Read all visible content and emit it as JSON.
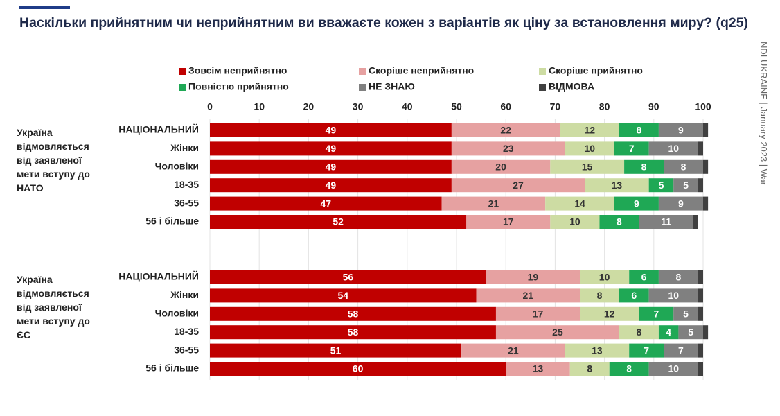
{
  "chart_data": {
    "type": "stacked-bar-horizontal",
    "title": "Наскільки прийнятним чи неприйнятним ви вважаєте кожен з варіантів як ціну за встановлення миру? (q25)",
    "source": "NDI UKRAINE | January 2023 | War",
    "xlim": [
      0,
      100
    ],
    "xticks": [
      0,
      10,
      20,
      30,
      40,
      50,
      60,
      70,
      80,
      90,
      100
    ],
    "grid": true,
    "groups": [
      {
        "label": "Україна відмовляється від заявленої мети вступу до НАТО",
        "categories": [
          "НАЦІОНАЛЬНИЙ",
          "Жінки",
          "Чоловіки",
          "18-35",
          "36-55",
          "56 і більше"
        ]
      },
      {
        "label": "Україна відмовляється від заявленої мети вступу до ЄС",
        "categories": [
          "НАЦІОНАЛЬНИЙ",
          "Жінки",
          "Чоловіки",
          "18-35",
          "36-55",
          "56 і більше"
        ]
      }
    ],
    "series": [
      {
        "name": "Зовсім неприйнятно",
        "color": "#c00000",
        "label_color": "#ffffff",
        "values": [
          49,
          49,
          49,
          49,
          47,
          52,
          56,
          54,
          58,
          58,
          51,
          60
        ]
      },
      {
        "name": "Скоріше неприйнятно",
        "color": "#e6a1a1",
        "label_color": "#333333",
        "values": [
          22,
          23,
          20,
          27,
          21,
          17,
          19,
          21,
          17,
          25,
          21,
          13
        ]
      },
      {
        "name": "Скоріше прийнятно",
        "color": "#cddca3",
        "label_color": "#333333",
        "values": [
          12,
          10,
          15,
          13,
          14,
          10,
          10,
          8,
          12,
          8,
          13,
          8
        ]
      },
      {
        "name": "Повністю прийнятно",
        "color": "#1fa855",
        "label_color": "#ffffff",
        "values": [
          8,
          7,
          8,
          5,
          9,
          8,
          6,
          6,
          7,
          4,
          7,
          8
        ]
      },
      {
        "name": "НЕ ЗНАЮ",
        "color": "#808080",
        "label_color": "#ffffff",
        "values": [
          9,
          10,
          8,
          5,
          9,
          11,
          8,
          10,
          5,
          5,
          7,
          10
        ]
      },
      {
        "name": "ВІДМОВА",
        "color": "#404040",
        "label_color": null,
        "values": [
          1,
          1,
          1,
          1,
          1,
          1,
          1,
          1,
          1,
          1,
          1,
          1
        ]
      }
    ]
  }
}
